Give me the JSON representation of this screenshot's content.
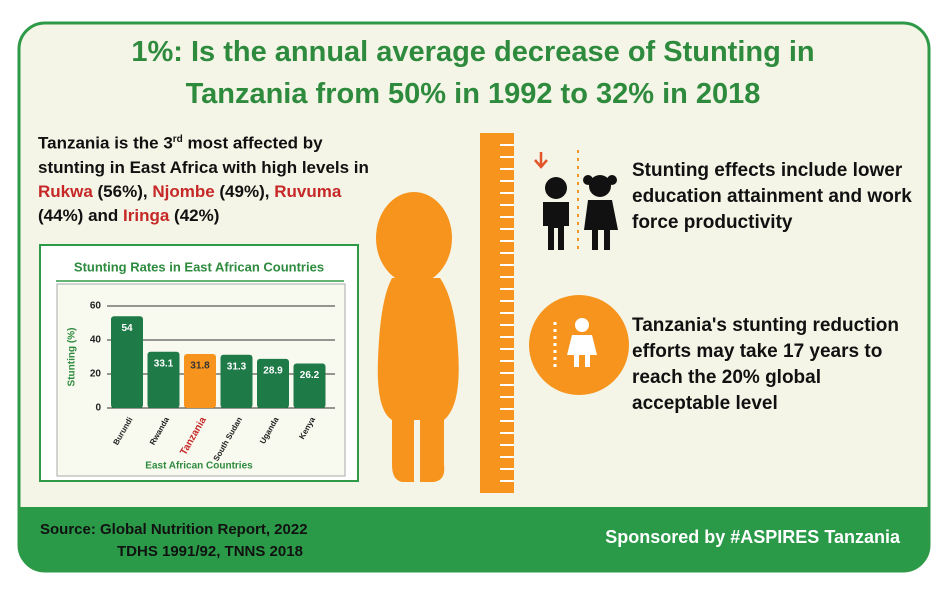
{
  "header": {
    "title": [
      "1%: Is the annual average decrease of Stunting in",
      "Tanzania from 50% in 1992 to 32% in 2018"
    ]
  },
  "intro": [
    "Tanzania is the 3",
    "rd",
    " most affected by stunting in East Africa with high levels in ",
    "Rukwa",
    " (56%), ",
    "Njombe",
    " (49%), ",
    "Ruvuma",
    " (44%) and ",
    "Iringa",
    " (42%)"
  ],
  "chart_data": {
    "type": "bar",
    "title": "Stunting Rates in East African Countries",
    "x_label": "East African Countries",
    "y_label": "Stunting (%)",
    "categories": [
      "Burundi",
      "Rwanda",
      "Tanzania",
      "South Sudan",
      "Uganda",
      "Kenya"
    ],
    "values": [
      54,
      33.1,
      31.8,
      31.3,
      28.9,
      26.2
    ],
    "colors": [
      "#1e7a47",
      "#1e7a47",
      "#f7941d",
      "#1e7a47",
      "#1e7a47",
      "#1e7a47"
    ],
    "value_label_colors": [
      "#ffffff",
      "#ffffff",
      "#333333",
      "#ffffff",
      "#ffffff",
      "#ffffff"
    ],
    "label_colors": [
      "#222222",
      "#222222",
      "#c62828",
      "#222222",
      "#222222",
      "#222222"
    ],
    "ylim": [
      0,
      60
    ],
    "yticks": [
      0,
      20,
      40,
      60
    ],
    "grid": true
  },
  "effects": [
    "Stunting effects include lower education attainment and work force productivity",
    "Tanzania's stunting reduction efforts may take 17 years to reach the 20% global acceptable level"
  ],
  "footer": {
    "source": [
      "Source:  Global Nutrition Report, 2022",
      "TDHS 1991/92, TNNS 2018"
    ],
    "sponsor": "Sponsored by #ASPIRES Tanzania"
  }
}
